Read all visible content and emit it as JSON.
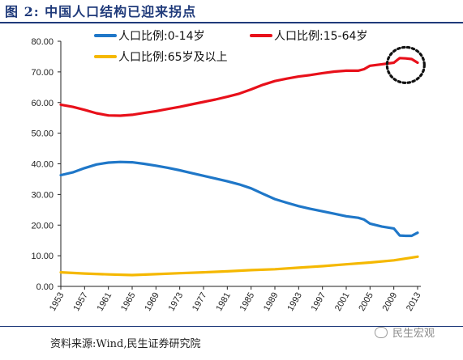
{
  "figure": {
    "title": "图 2:  中国人口结构已迎来拐点",
    "source": "资料来源:Wind,民生证券研究院",
    "watermark": "民生宏观"
  },
  "chart_data": {
    "type": "line",
    "title": "",
    "xlabel": "",
    "ylabel": "",
    "ylim": [
      0,
      80
    ],
    "xlim": [
      1953,
      2013
    ],
    "grid": false,
    "legend_position": "top",
    "y_ticks": [
      "0.00",
      "10.00",
      "20.00",
      "30.00",
      "40.00",
      "50.00",
      "60.00",
      "70.00",
      "80.00"
    ],
    "x_ticks": [
      "1953",
      "1957",
      "1961",
      "1965",
      "1969",
      "1973",
      "1977",
      "1981",
      "1985",
      "1989",
      "1993",
      "1997",
      "2001",
      "2005",
      "2009",
      "2013"
    ],
    "series": [
      {
        "name": "人口比例:0-14岁",
        "color": "#1f77c8",
        "points": [
          [
            1953,
            36.3
          ],
          [
            1955,
            37.2
          ],
          [
            1957,
            38.6
          ],
          [
            1959,
            39.8
          ],
          [
            1961,
            40.4
          ],
          [
            1963,
            40.6
          ],
          [
            1965,
            40.5
          ],
          [
            1967,
            40.0
          ],
          [
            1969,
            39.4
          ],
          [
            1971,
            38.7
          ],
          [
            1973,
            37.9
          ],
          [
            1975,
            37.0
          ],
          [
            1977,
            36.1
          ],
          [
            1979,
            35.2
          ],
          [
            1981,
            34.3
          ],
          [
            1983,
            33.3
          ],
          [
            1985,
            32.0
          ],
          [
            1987,
            30.2
          ],
          [
            1989,
            28.5
          ],
          [
            1991,
            27.3
          ],
          [
            1993,
            26.2
          ],
          [
            1995,
            25.3
          ],
          [
            1997,
            24.5
          ],
          [
            1999,
            23.7
          ],
          [
            2001,
            22.9
          ],
          [
            2003,
            22.4
          ],
          [
            2004,
            21.8
          ],
          [
            2005,
            20.5
          ],
          [
            2007,
            19.5
          ],
          [
            2009,
            18.9
          ],
          [
            2010,
            16.6
          ],
          [
            2011,
            16.5
          ],
          [
            2012,
            16.5
          ],
          [
            2013,
            17.5
          ]
        ]
      },
      {
        "name": "人口比例:15-64岁",
        "color": "#e8101a",
        "points": [
          [
            1953,
            59.3
          ],
          [
            1955,
            58.6
          ],
          [
            1957,
            57.6
          ],
          [
            1959,
            56.5
          ],
          [
            1961,
            55.8
          ],
          [
            1963,
            55.7
          ],
          [
            1965,
            56.0
          ],
          [
            1967,
            56.6
          ],
          [
            1969,
            57.2
          ],
          [
            1971,
            57.9
          ],
          [
            1973,
            58.6
          ],
          [
            1975,
            59.4
          ],
          [
            1977,
            60.2
          ],
          [
            1979,
            61.0
          ],
          [
            1981,
            61.9
          ],
          [
            1983,
            62.9
          ],
          [
            1985,
            64.3
          ],
          [
            1987,
            65.8
          ],
          [
            1989,
            67.0
          ],
          [
            1991,
            67.8
          ],
          [
            1993,
            68.5
          ],
          [
            1995,
            69.0
          ],
          [
            1997,
            69.6
          ],
          [
            1999,
            70.1
          ],
          [
            2001,
            70.4
          ],
          [
            2003,
            70.4
          ],
          [
            2004,
            70.9
          ],
          [
            2005,
            72.0
          ],
          [
            2007,
            72.5
          ],
          [
            2009,
            73.0
          ],
          [
            2010,
            74.5
          ],
          [
            2011,
            74.4
          ],
          [
            2012,
            74.2
          ],
          [
            2013,
            73.0
          ]
        ]
      },
      {
        "name": "人口比例:65岁及以上",
        "color": "#f5b800",
        "points": [
          [
            1953,
            4.6
          ],
          [
            1957,
            4.2
          ],
          [
            1961,
            3.9
          ],
          [
            1965,
            3.7
          ],
          [
            1969,
            4.0
          ],
          [
            1973,
            4.3
          ],
          [
            1977,
            4.6
          ],
          [
            1981,
            4.9
          ],
          [
            1985,
            5.3
          ],
          [
            1989,
            5.6
          ],
          [
            1993,
            6.1
          ],
          [
            1997,
            6.6
          ],
          [
            2001,
            7.2
          ],
          [
            2005,
            7.8
          ],
          [
            2009,
            8.5
          ],
          [
            2013,
            9.7
          ]
        ]
      }
    ],
    "annotation": {
      "type": "dotted-circle",
      "center": [
        2011,
        73.3
      ],
      "color": "#111111"
    }
  }
}
